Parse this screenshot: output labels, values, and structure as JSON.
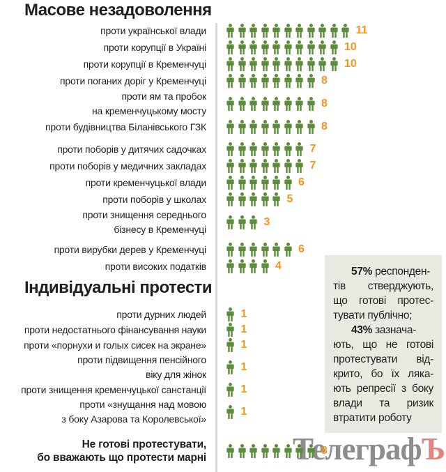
{
  "colors": {
    "green": "#5c8d3c",
    "orange": "#f7941d",
    "divider": "#d8d8d8",
    "infobox_bg": "#e8eae2",
    "logo_gray": "#8d8d8d",
    "logo_accent": "#e2837d",
    "text": "#1f1f1d"
  },
  "sections": {
    "mass": {
      "title": "Масове незадоволення",
      "groups": [
        {
          "rows": [
            {
              "label": "проти української влади",
              "count": 11
            },
            {
              "label": "проти корупції в Україні",
              "count": 10
            },
            {
              "label": "проти корупції в Кременчуці",
              "count": 10
            },
            {
              "label": "проти поганих доріг у Кременчуці",
              "count": 8
            },
            {
              "label": "проти ям та пробок\nна кременчуцькому мосту",
              "count": 8
            },
            {
              "label": "проти будівництва Біланівського ГЗК",
              "count": 8
            }
          ]
        },
        {
          "rows": [
            {
              "label": "проти поборів у дитячих садочках",
              "count": 7
            },
            {
              "label": "проти поборів у медичних закладах",
              "count": 7
            },
            {
              "label": "проти кременчуцької влади",
              "count": 6
            },
            {
              "label": "проти поборів у школах",
              "count": 5
            },
            {
              "label": "проти знищення середнього\nбізнесу в Кременчуці",
              "count": 3
            }
          ]
        },
        {
          "rows": [
            {
              "label": "проти вирубки дерев у Кременчуці",
              "count": 6
            },
            {
              "label": "проти високих податків",
              "count": 4
            }
          ]
        }
      ]
    },
    "individual": {
      "title": "Індивідуальні протести",
      "groups": [
        {
          "rows": [
            {
              "label": "проти дурних людей",
              "count": 1
            },
            {
              "label": "проти недостатнього фінансування науки",
              "count": 1
            },
            {
              "label": "проти «порнухи и голых сисек на экране»",
              "count": 1
            },
            {
              "label": "проти підвищення пенсійного\nвіку для жінок",
              "count": 1
            },
            {
              "label": "проти знищення кременчуцької санстанції",
              "count": 1
            },
            {
              "label": "проти «знущання над мовою\nз боку Азарова та Королевської»",
              "count": 1
            }
          ]
        }
      ]
    },
    "not_ready": {
      "rows": [
        {
          "label": "Не готові протестувати,\nбо вважають що протести марні",
          "count": 8
        }
      ]
    }
  },
  "infobox": {
    "p1_lead": "57%",
    "p1_rest": "респонден-",
    "p1_lines": [
      "тів стверджують,",
      "що готові протес-",
      "тувати публічно;"
    ],
    "p2_lead": "43%",
    "p2_rest": "зазнача-",
    "p2_lines": [
      "ють, що не готові",
      "протестувати від-",
      "крито, бо їх ляка-",
      "ють репресії з боку",
      "влади та ризик",
      "втратити роботу"
    ]
  },
  "logo": {
    "text": "Телеграф",
    "accent": "Ъ"
  },
  "chart_data": [
    {
      "type": "bar",
      "pictogram_unit": "person-icon",
      "title": "Масове незадоволення",
      "categories": [
        "проти української влади",
        "проти корупції в Україні",
        "проти корупції в Кременчуці",
        "проти поганих доріг у Кременчуці",
        "проти ям та пробок на кременчуцькому мосту",
        "проти будівництва Біланівського ГЗК",
        "проти поборів у дитячих садочках",
        "проти поборів у медичних закладах",
        "проти кременчуцької влади",
        "проти поборів у школах",
        "проти знищення середнього бізнесу в Кременчуці",
        "проти вирубки дерев у Кременчуці",
        "проти високих податків"
      ],
      "values": [
        11,
        10,
        10,
        8,
        8,
        8,
        7,
        7,
        6,
        5,
        3,
        6,
        4
      ],
      "legend_position": "none",
      "grid": false
    },
    {
      "type": "bar",
      "pictogram_unit": "person-icon",
      "title": "Індивідуальні протести",
      "categories": [
        "проти дурних людей",
        "проти недостатнього фінансування науки",
        "проти «порнухи и голых сисек на экране»",
        "проти підвищення пенсійного віку для жінок",
        "проти знищення кременчуцької санстанції",
        "проти «знущання над мовою з боку Азарова та Королевської»"
      ],
      "values": [
        1,
        1,
        1,
        1,
        1,
        1
      ],
      "legend_position": "none",
      "grid": false
    },
    {
      "type": "bar",
      "pictogram_unit": "person-icon",
      "title": "",
      "categories": [
        "Не готові протестувати, бо вважають що протести марні"
      ],
      "values": [
        8
      ],
      "legend_position": "none",
      "grid": false
    }
  ]
}
